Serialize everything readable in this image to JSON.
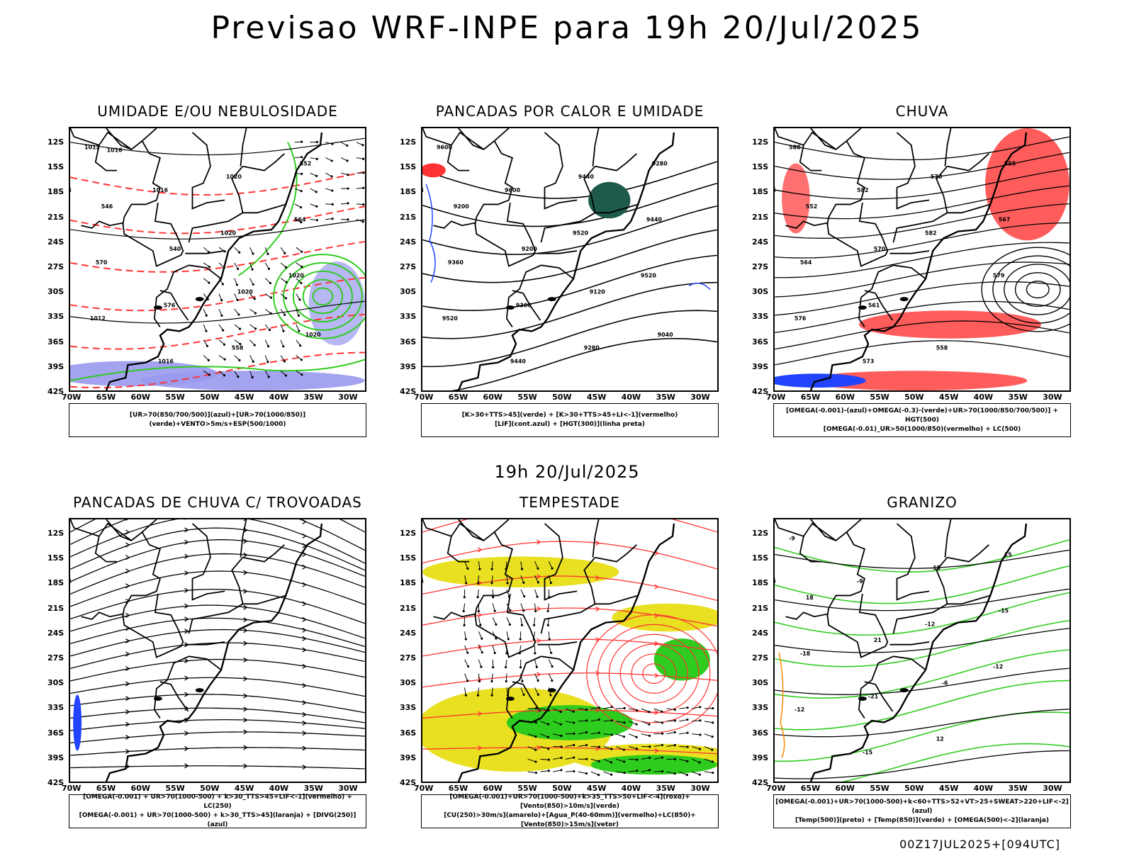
{
  "main_title": "Previsao WRF-INPE  para 19h 20/Jul/2025",
  "mid_title": "19h 20/Jul/2025",
  "footer": "00Z17JUL2025+[094UTC]",
  "lat_ticks": [
    "12S",
    "15S",
    "18S",
    "21S",
    "24S",
    "27S",
    "30S",
    "33S",
    "36S",
    "39S",
    "42S"
  ],
  "lon_ticks": [
    "70W",
    "65W",
    "60W",
    "55W",
    "50W",
    "45W",
    "40W",
    "35W",
    "30W"
  ],
  "colors": {
    "wind_green": "#2ecc1e",
    "red_line": "#ff3333",
    "blue_shade": "#9999ee",
    "yellow": "#e8e020",
    "dark_green": "#1e5a4a",
    "orange": "#ff8800",
    "blue": "#2244ff"
  },
  "panels": [
    {
      "title": "UMIDADE E/OU NEBULOSIDADE",
      "legend": [
        "[UR>70(850/700/500)](azul)+[UR>70(1000/850)](verde)+VENTO>5m/s+ESP(500/1000)"
      ],
      "labels": [
        "1012",
        "1016",
        "1020",
        "1020",
        "1012",
        "1016",
        "1020",
        "564",
        "570",
        "576",
        "558",
        "552",
        "546",
        "540",
        "1020",
        "1020",
        "1016"
      ]
    },
    {
      "title": "PANCADAS POR CALOR E UMIDADE",
      "legend": [
        "[K>30+TTS>45](verde) + [K>30+TTS>45+LI<-1](vermelho)",
        "[LIF](cont.azul) + [HGT(300)](linha preta)"
      ],
      "labels": [
        "9600",
        "9600",
        "9520",
        "9520",
        "9520",
        "9440",
        "9440",
        "9440",
        "9360",
        "9360",
        "9280",
        "9280",
        "9200",
        "9200",
        "9120",
        "9040"
      ]
    },
    {
      "title": "CHUVA",
      "legend": [
        "[OMEGA(-0.001)-(azul)+OMEGA(-0.3)-(verde)+UR>70(1000/850/700/500)] + HGT(500)",
        "[OMEGA(-0.01)_UR>50(1000/850)(vermelho) + LC(500)"
      ],
      "labels": [
        "588",
        "582",
        "582",
        "579",
        "576",
        "573",
        "570",
        "567",
        "564",
        "561",
        "558",
        "555",
        "552",
        "570"
      ]
    },
    {
      "title": "PANCADAS DE CHUVA C/ TROVOADAS",
      "legend": [
        "[OMEGA(-0.001) + UR>70(1000-500) + k>30_TTS>45+LIF<-1](vermelho) + LC(250)",
        "[OMEGA(-0.001) + UR>70(1000-500) + k>30_TTS>45](laranja) + [DIVG(250)](azul)"
      ],
      "labels": []
    },
    {
      "title": "TEMPESTADE",
      "legend": [
        "[OMEGA(-0.001)+UR>70(1000-500)+k>35_TTS>50+LIF<-4](roxo)+[Vento(850)>10m/s](verde)",
        "[CU(250)>30m/s](amarelo)+[Agua_P(40-60mm)](vermelho)+LC(850)+[Vento(850)>15m/s](vetor)"
      ],
      "labels": []
    },
    {
      "title": "GRANIZO",
      "legend": [
        "[OMEGA(-0.001)+UR>70(1000-500)+k<60+TTS>52+VT>25+SWEAT>220+LIF<-2](azul)",
        "[Temp(500)](preto) + [Temp(850)](verde) + [OMEGA(500)<-2](laranja)"
      ],
      "labels": [
        "-9",
        "-9",
        "-12",
        "-12",
        "-12",
        "-15",
        "-15",
        "-15",
        "-18",
        "-21",
        "12",
        "15",
        "18",
        "21",
        "-6"
      ]
    }
  ]
}
